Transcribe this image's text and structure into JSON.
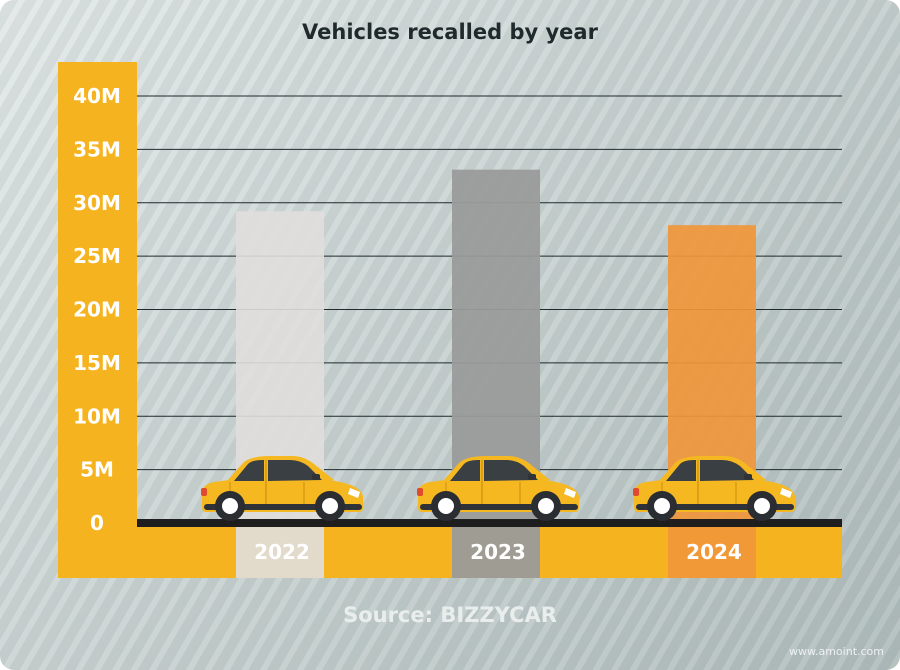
{
  "title": "Vehicles recalled by year",
  "source": "Source: BIZZYCAR",
  "watermark": "www.amoint.com",
  "colors": {
    "panel": "#f6b320",
    "car_body": "#f5b820",
    "grid": "#1f2a2c",
    "road": "#1e1e1e",
    "bar_fills": [
      "#e0dedd",
      "#9a9b9b",
      "#f0963a"
    ]
  },
  "chart_data": {
    "type": "bar",
    "title": "Vehicles recalled by year",
    "categories": [
      "2022",
      "2023",
      "2024"
    ],
    "values": [
      29.2,
      33.1,
      27.9
    ],
    "unit": "M",
    "ylim": [
      0,
      40
    ],
    "yticks": [
      0,
      5,
      10,
      15,
      20,
      25,
      30,
      35,
      40
    ],
    "ytick_labels": [
      "0",
      "5M",
      "10M",
      "15M",
      "20M",
      "25M",
      "30M",
      "35M",
      "40M"
    ],
    "grid": true,
    "legend": "none",
    "bar_icons": [
      "car-icon",
      "car-icon",
      "car-icon"
    ]
  }
}
